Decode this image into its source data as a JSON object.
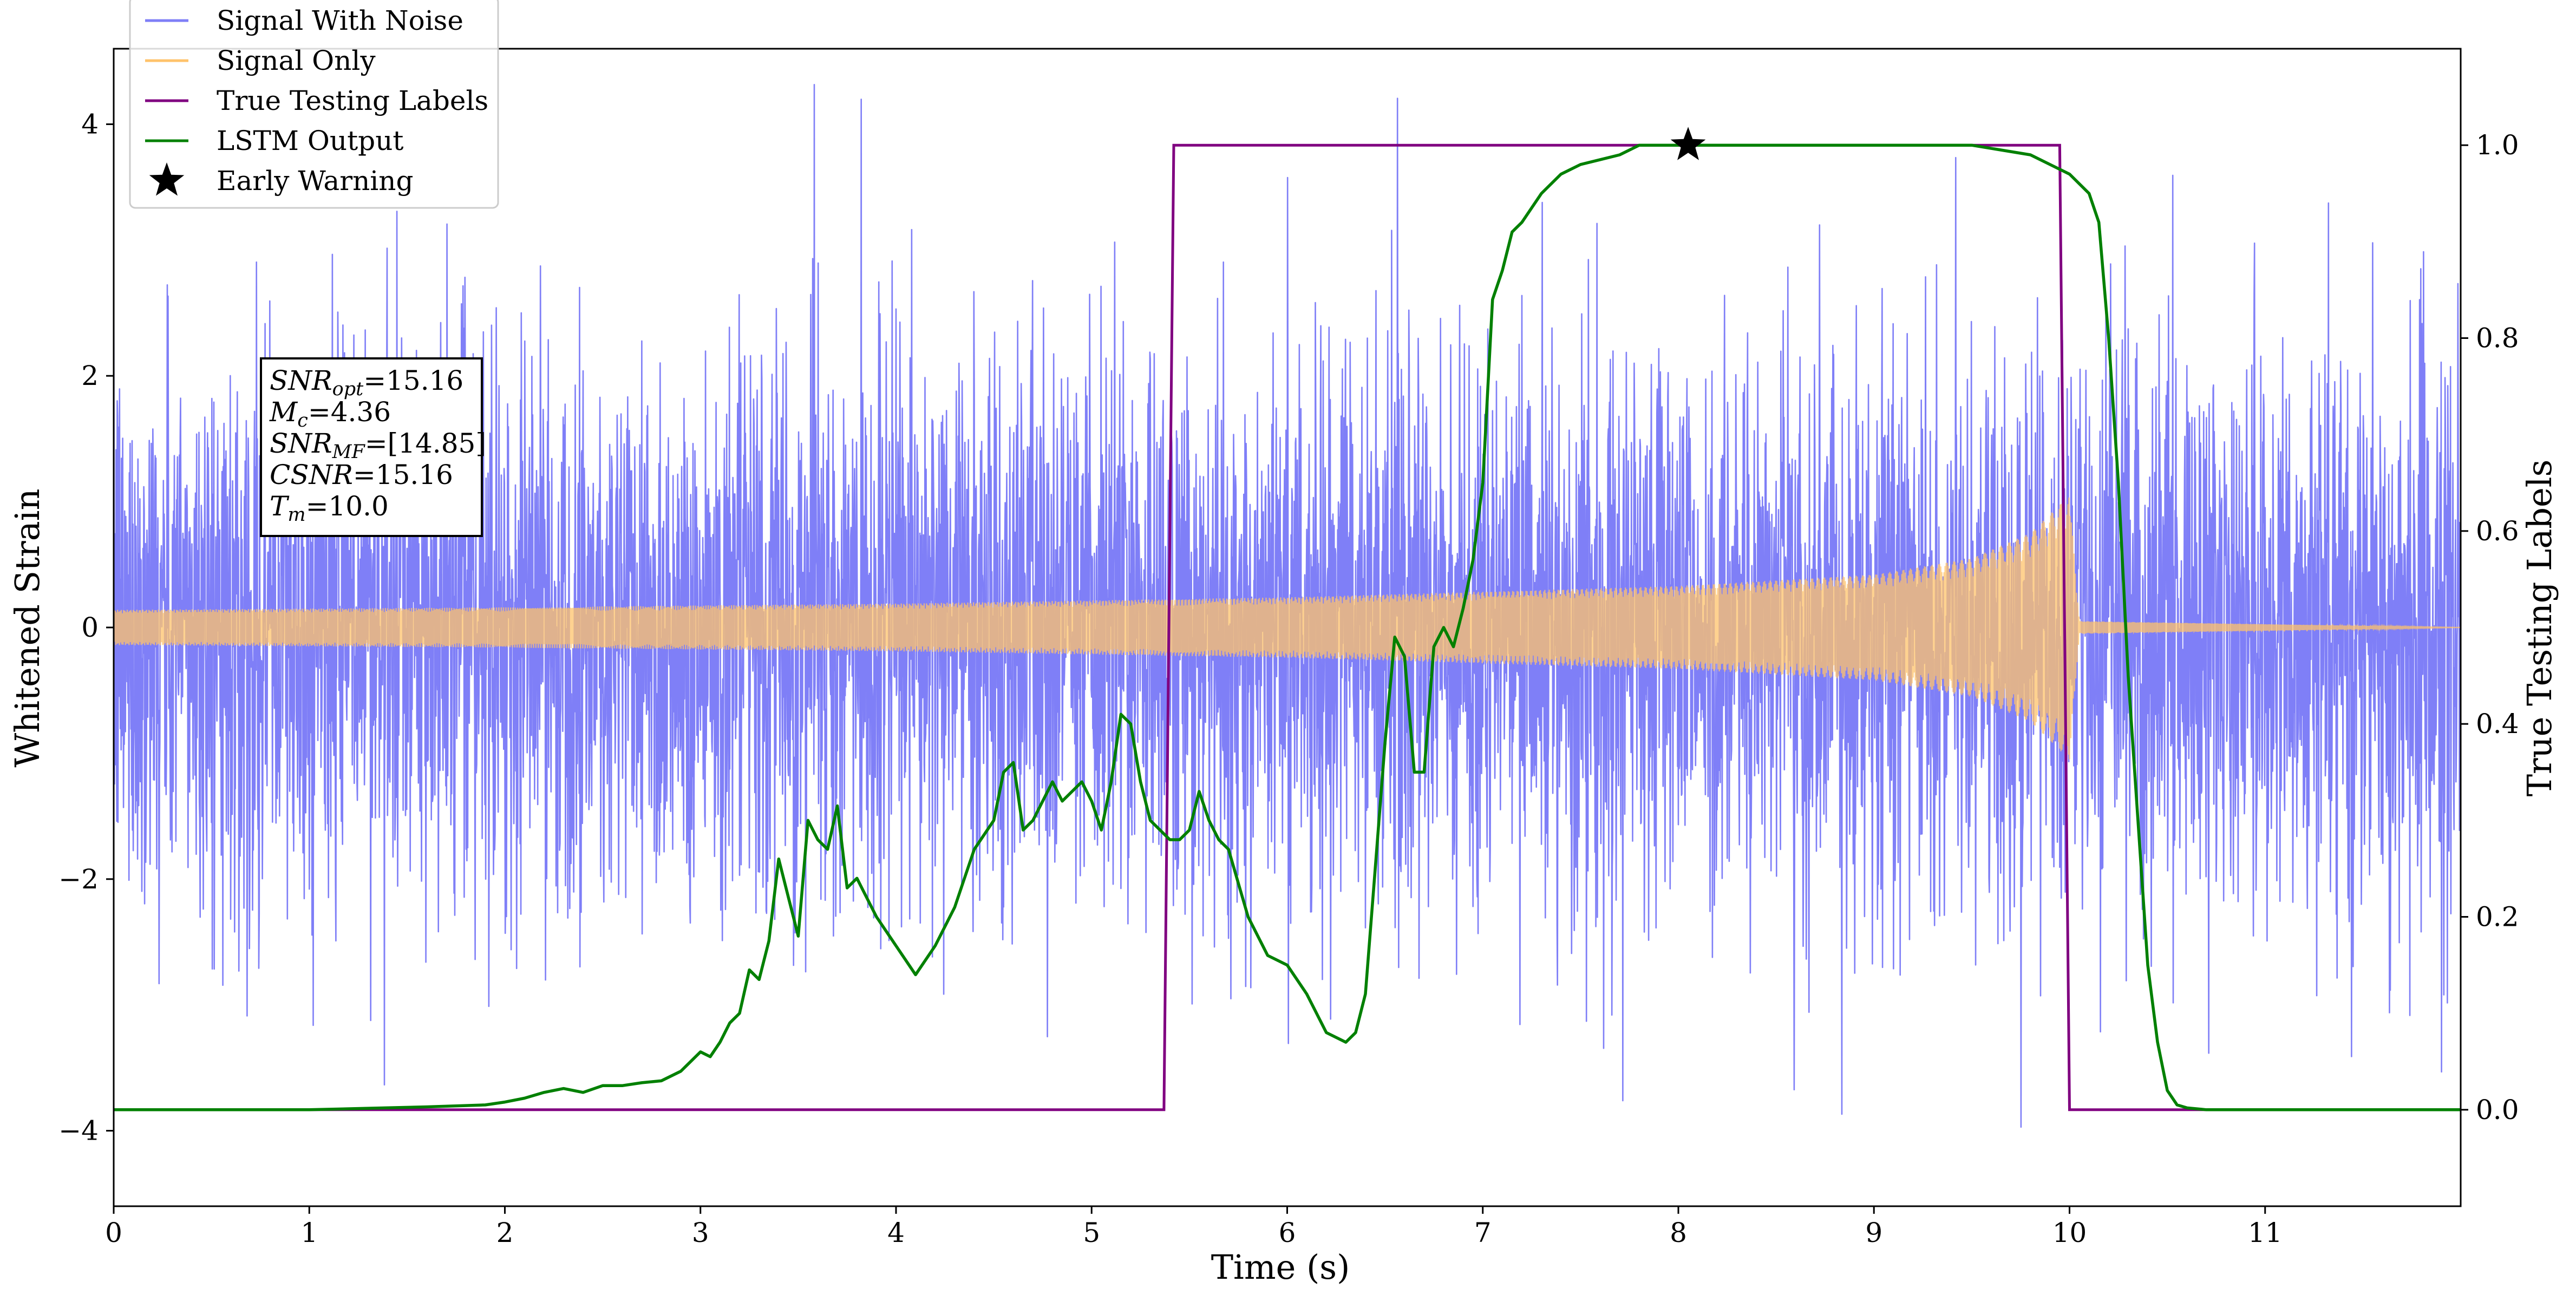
{
  "chart_data": {
    "type": "line",
    "xlabel": "Time (s)",
    "ylabel_left": "Whitened Strain",
    "ylabel_right": "True Testing Labels",
    "xlim": [
      0,
      12
    ],
    "ylim_left": [
      -4.6,
      4.6
    ],
    "ylim_right": [
      -0.1,
      1.1
    ],
    "x_ticks": [
      0,
      1,
      2,
      3,
      4,
      5,
      6,
      7,
      8,
      9,
      10,
      11
    ],
    "x_tick_labels": [
      "0",
      "1",
      "2",
      "3",
      "4",
      "5",
      "6",
      "7",
      "8",
      "9",
      "10",
      "11"
    ],
    "y_left_ticks": [
      -4,
      -2,
      0,
      2,
      4
    ],
    "y_left_tick_labels": [
      "−4",
      "−2",
      "0",
      "2",
      "4"
    ],
    "y_right_ticks": [
      0.0,
      0.2,
      0.4,
      0.6,
      0.8,
      1.0
    ],
    "y_right_tick_labels": [
      "0.0",
      "0.2",
      "0.4",
      "0.6",
      "0.8",
      "1.0"
    ],
    "grid": false,
    "legend_placement": "top-left",
    "legend": [
      {
        "label": "Signal With Noise",
        "color": "#7f7ff7",
        "marker": "line"
      },
      {
        "label": "Signal Only",
        "color": "#ffc36b",
        "marker": "line"
      },
      {
        "label": "True Testing Labels",
        "color": "#800080",
        "marker": "line"
      },
      {
        "label": "LSTM Output",
        "color": "#008000",
        "marker": "line"
      },
      {
        "label": "Early Warning",
        "color": "#000000",
        "marker": "star"
      }
    ],
    "annotation_box": {
      "lines": [
        {
          "symbol": "SNR",
          "sub": "opt",
          "value": "=15.16"
        },
        {
          "symbol": "M",
          "sub": "c",
          "value": "=4.36"
        },
        {
          "symbol": "SNR",
          "sub": "MF",
          "value": "=[14.85]"
        },
        {
          "symbol": "CSNR",
          "sub": "",
          "value": "=15.16"
        },
        {
          "symbol": "T",
          "sub": "m",
          "value": "=10.0"
        }
      ]
    },
    "series": [
      {
        "name": "Signal With Noise",
        "axis": "left",
        "color": "#7f7ff7",
        "style": "dense noise, approx. gaussian, std 1.1, peaks to about ±4",
        "x_range": [
          0,
          12
        ],
        "noise_std": 1.1
      },
      {
        "name": "Signal Only",
        "axis": "left",
        "color": "#ffc36b",
        "style": "chirp envelope, amplitude rises to ~1.2 at merger",
        "envelope_x": [
          0,
          2,
          4,
          6,
          8,
          9,
          9.5,
          9.8,
          10.0,
          10.05,
          12
        ],
        "envelope_amp": [
          0.14,
          0.16,
          0.19,
          0.24,
          0.33,
          0.42,
          0.55,
          0.75,
          1.05,
          0.05,
          0.0
        ]
      },
      {
        "name": "True Testing Labels",
        "axis": "right",
        "color": "#800080",
        "x": [
          0,
          5.37,
          5.42,
          9.95,
          10.0,
          12
        ],
        "y": [
          0,
          0,
          1,
          1,
          0,
          0
        ]
      },
      {
        "name": "LSTM Output",
        "axis": "right",
        "color": "#008000",
        "x": [
          0,
          0.5,
          1.0,
          1.4,
          1.6,
          1.9,
          2.0,
          2.1,
          2.2,
          2.3,
          2.4,
          2.5,
          2.6,
          2.7,
          2.8,
          2.9,
          3.0,
          3.05,
          3.1,
          3.15,
          3.2,
          3.25,
          3.3,
          3.35,
          3.4,
          3.45,
          3.5,
          3.55,
          3.6,
          3.65,
          3.7,
          3.75,
          3.8,
          3.85,
          3.9,
          4.0,
          4.1,
          4.2,
          4.3,
          4.4,
          4.5,
          4.55,
          4.6,
          4.65,
          4.7,
          4.75,
          4.8,
          4.85,
          4.9,
          4.95,
          5.0,
          5.05,
          5.1,
          5.15,
          5.2,
          5.25,
          5.3,
          5.35,
          5.4,
          5.45,
          5.5,
          5.55,
          5.6,
          5.65,
          5.7,
          5.8,
          5.9,
          6.0,
          6.1,
          6.2,
          6.3,
          6.35,
          6.4,
          6.45,
          6.5,
          6.55,
          6.6,
          6.65,
          6.7,
          6.75,
          6.8,
          6.85,
          6.9,
          6.95,
          7.0,
          7.05,
          7.1,
          7.15,
          7.2,
          7.3,
          7.4,
          7.5,
          7.6,
          7.7,
          7.8,
          8.0,
          8.5,
          9.0,
          9.5,
          9.8,
          9.9,
          10.0,
          10.1,
          10.15,
          10.2,
          10.25,
          10.3,
          10.35,
          10.4,
          10.45,
          10.5,
          10.55,
          10.6,
          10.7,
          10.8,
          11.0,
          12.0
        ],
        "y": [
          0.0,
          0.0,
          0.0,
          0.002,
          0.003,
          0.005,
          0.008,
          0.012,
          0.018,
          0.022,
          0.018,
          0.025,
          0.025,
          0.028,
          0.03,
          0.04,
          0.06,
          0.055,
          0.07,
          0.09,
          0.1,
          0.145,
          0.135,
          0.175,
          0.26,
          0.22,
          0.18,
          0.3,
          0.28,
          0.27,
          0.315,
          0.23,
          0.24,
          0.22,
          0.2,
          0.17,
          0.14,
          0.17,
          0.21,
          0.27,
          0.3,
          0.35,
          0.36,
          0.29,
          0.3,
          0.32,
          0.34,
          0.32,
          0.33,
          0.34,
          0.32,
          0.29,
          0.34,
          0.41,
          0.4,
          0.34,
          0.3,
          0.29,
          0.28,
          0.28,
          0.29,
          0.33,
          0.3,
          0.28,
          0.27,
          0.2,
          0.16,
          0.15,
          0.12,
          0.08,
          0.07,
          0.08,
          0.12,
          0.25,
          0.38,
          0.49,
          0.47,
          0.35,
          0.35,
          0.48,
          0.5,
          0.48,
          0.52,
          0.57,
          0.65,
          0.84,
          0.87,
          0.91,
          0.92,
          0.95,
          0.97,
          0.98,
          0.985,
          0.99,
          1.0,
          1.0,
          1.0,
          1.0,
          1.0,
          0.99,
          0.98,
          0.97,
          0.95,
          0.92,
          0.8,
          0.65,
          0.45,
          0.3,
          0.15,
          0.07,
          0.02,
          0.005,
          0.002,
          0.0,
          0.0,
          0.0,
          0.0
        ]
      }
    ],
    "early_warning": {
      "x": 8.05,
      "y": 1.0,
      "color": "#000000"
    }
  }
}
